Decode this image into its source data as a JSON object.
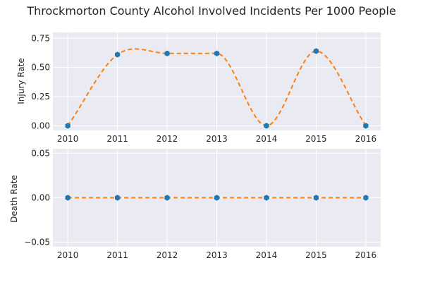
{
  "chart_data": [
    {
      "type": "line",
      "title": "Throckmorton County Alcohol Involved Incidents Per 1000 People",
      "xlabel": "",
      "ylabel": "Injury Rate",
      "x": [
        2010,
        2011,
        2012,
        2013,
        2014,
        2015,
        2016
      ],
      "x_tick_labels": [
        "2010",
        "2011",
        "2012",
        "2013",
        "2014",
        "2015",
        "2016"
      ],
      "xlim": [
        2009.7,
        2016.3
      ],
      "ylim": [
        -0.04,
        0.8
      ],
      "y_ticks": [
        0.0,
        0.25,
        0.5,
        0.75
      ],
      "y_tick_labels": [
        "0.00",
        "0.25",
        "0.50",
        "0.75"
      ],
      "grid": true,
      "series": [
        {
          "style": "markers",
          "values": [
            0.0,
            0.61,
            0.62,
            0.62,
            0.0,
            0.64,
            0.0
          ],
          "color": "#1f77b4"
        },
        {
          "style": "smoothed dashed curve",
          "values": [
            0.0,
            0.61,
            0.62,
            0.62,
            0.0,
            0.64,
            0.0
          ],
          "color": "#ff7f0e"
        }
      ]
    },
    {
      "type": "line",
      "title": "",
      "xlabel": "",
      "ylabel": "Death Rate",
      "x": [
        2010,
        2011,
        2012,
        2013,
        2014,
        2015,
        2016
      ],
      "x_tick_labels": [
        "2010",
        "2011",
        "2012",
        "2013",
        "2014",
        "2015",
        "2016"
      ],
      "xlim": [
        2009.7,
        2016.3
      ],
      "ylim": [
        -0.055,
        0.055
      ],
      "y_ticks": [
        -0.05,
        0.0,
        0.05
      ],
      "y_tick_labels": [
        "−0.05",
        "0.00",
        "0.05"
      ],
      "grid": true,
      "series": [
        {
          "style": "markers",
          "values": [
            0.0,
            0.0,
            0.0,
            0.0,
            0.0,
            0.0,
            0.0
          ],
          "color": "#1f77b4"
        },
        {
          "style": "smoothed dashed curve",
          "values": [
            0.0,
            0.0,
            0.0,
            0.0,
            0.0,
            0.0,
            0.0
          ],
          "color": "#ff7f0e"
        }
      ]
    }
  ],
  "colors": {
    "plot_background": "#eaeaf2",
    "grid": "#ffffff",
    "text": "#262626"
  }
}
